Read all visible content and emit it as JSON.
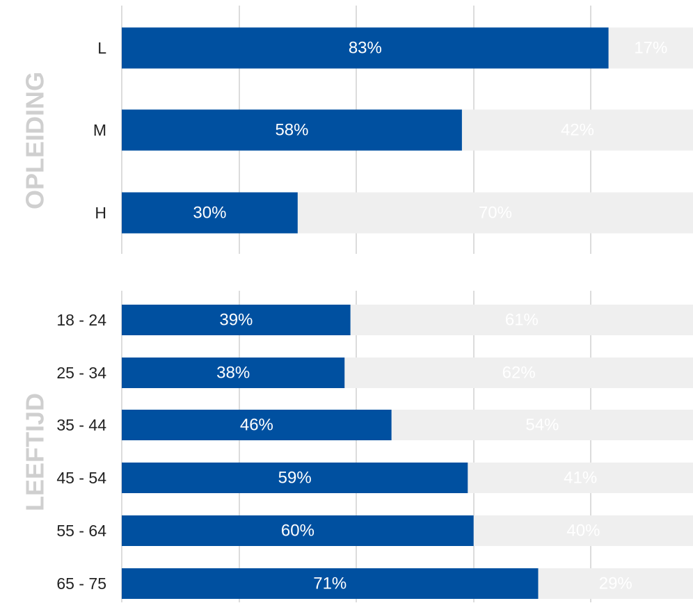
{
  "chart_data": [
    {
      "type": "bar",
      "orientation": "horizontal",
      "stacked": true,
      "group_title": "OPLEIDING",
      "categories": [
        "L",
        "M",
        "H"
      ],
      "series": [
        {
          "values": [
            83,
            58,
            30
          ],
          "labels": [
            "83%",
            "58%",
            "30%"
          ],
          "color": "#0050a0"
        },
        {
          "values": [
            17,
            42,
            70
          ],
          "labels": [
            "17%",
            "42%",
            "70%"
          ],
          "color": "#efefef"
        }
      ],
      "xlim": [
        0,
        100
      ],
      "grid": true
    },
    {
      "type": "bar",
      "orientation": "horizontal",
      "stacked": true,
      "group_title": "LEEFTIJD",
      "categories": [
        "18 - 24",
        "25 - 34",
        "35 - 44",
        "45 - 54",
        "55 - 64",
        "65 - 75"
      ],
      "series": [
        {
          "values": [
            39,
            38,
            46,
            59,
            60,
            71
          ],
          "labels": [
            "39%",
            "38%",
            "46%",
            "59%",
            "60%",
            "71%"
          ],
          "color": "#0050a0"
        },
        {
          "values": [
            61,
            62,
            54,
            41,
            40,
            29
          ],
          "labels": [
            "61%",
            "62%",
            "54%",
            "41%",
            "40%",
            "29%"
          ],
          "color": "#efefef"
        }
      ],
      "xlim": [
        0,
        100
      ],
      "grid": true
    }
  ],
  "colors": {
    "primary_bar": "#0050a0",
    "remainder_bar": "#efefef",
    "primary_label": "#ffffff",
    "remainder_label": "#ffffff",
    "gridline": "#d0d0d0",
    "group_title": "#cfcfcf",
    "category_text": "#222222"
  }
}
